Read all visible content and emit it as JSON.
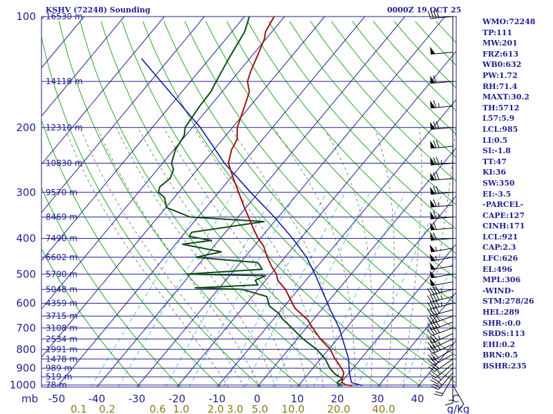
{
  "header": {
    "title": "KSHV (72248) Sounding",
    "time": "0000Z 19 OCT 25"
  },
  "indices": [
    "WMO:72248",
    "TP:111",
    "MW:201",
    "FRZ:613",
    "WB0:632",
    "PW:1.72",
    "RH:71.4",
    "MAXT:30.2",
    "TH:5712",
    "L57:5.9",
    "LCL:985",
    "LI:0.5",
    "SI:-1.8",
    "TT:47",
    "KI:36",
    "SW:350",
    "EI:-3.5",
    "-PARCEL-",
    "CAPE:127",
    "CINH:171",
    "LCL:921",
    "CAP:2.3",
    "LFC:626",
    "EL:496",
    "MPL:306",
    "-WIND-",
    "STM:278/26",
    "HEL:289",
    "SHR-:0.0",
    "SRDS:113",
    "EHI:0.2",
    "BRN:0.5",
    "BSHR:235"
  ],
  "colors": {
    "isobar": "#1f1f8f",
    "isotherm": "#1f1f8f",
    "dry_adiabat": "#22aa22",
    "moist_adiabat": "#666666",
    "mixing_ratio": "#33aaee",
    "temperature": "#a01010",
    "dewpoint": "#0e4a14",
    "parcel": "#1018a0",
    "wind": "#000000"
  },
  "chart_data": {
    "type": "skew-t",
    "pressure_unit": "mb",
    "mixing_ratio_unit": "g/kg",
    "pressure_ticks": [
      100,
      200,
      300,
      400,
      500,
      600,
      700,
      800,
      900,
      1000
    ],
    "temperature_ticks": [
      -50,
      -40,
      -30,
      -20,
      -10,
      0,
      10,
      20,
      30,
      40
    ],
    "mixing_ratio_labels": [
      "0.1",
      "0.2",
      "0.6",
      "1.0",
      "2.0",
      "3.0",
      "5.0",
      "10.0",
      "20.0",
      "40.0"
    ],
    "height_levels": [
      {
        "p": 100,
        "label": "16530 m"
      },
      {
        "p": 150,
        "label": "14118 m"
      },
      {
        "p": 200,
        "label": "12310 m"
      },
      {
        "p": 250,
        "label": "10830 m"
      },
      {
        "p": 300,
        "label": "9570 m"
      },
      {
        "p": 350,
        "label": "8469 m"
      },
      {
        "p": 400,
        "label": "7490 m"
      },
      {
        "p": 450,
        "label": "6602 m"
      },
      {
        "p": 500,
        "label": "5790 m"
      },
      {
        "p": 550,
        "label": "5048 m"
      },
      {
        "p": 600,
        "label": "4359 m"
      },
      {
        "p": 650,
        "label": "3715 m"
      },
      {
        "p": 700,
        "label": "3108 m"
      },
      {
        "p": 750,
        "label": "2534 m"
      },
      {
        "p": 800,
        "label": "1991 m"
      },
      {
        "p": 850,
        "label": "1478 m"
      },
      {
        "p": 900,
        "label": "989 m"
      },
      {
        "p": 950,
        "label": "519 m"
      },
      {
        "p": 1000,
        "label": "78 m"
      }
    ],
    "temperature_profile": [
      {
        "p": 1004,
        "t": 23.5
      },
      {
        "p": 1000,
        "t": 21.8
      },
      {
        "p": 985,
        "t": 20.2
      },
      {
        "p": 960,
        "t": 19.5
      },
      {
        "p": 925,
        "t": 18.6
      },
      {
        "p": 880,
        "t": 15.8
      },
      {
        "p": 850,
        "t": 13.6
      },
      {
        "p": 800,
        "t": 10.4
      },
      {
        "p": 750,
        "t": 5.8
      },
      {
        "p": 700,
        "t": 1.6
      },
      {
        "p": 665,
        "t": -1.4
      },
      {
        "p": 620,
        "t": -6.8
      },
      {
        "p": 600,
        "t": -8.6
      },
      {
        "p": 550,
        "t": -13.2
      },
      {
        "p": 520,
        "t": -17.0
      },
      {
        "p": 500,
        "t": -18.6
      },
      {
        "p": 475,
        "t": -21.6
      },
      {
        "p": 450,
        "t": -24.4
      },
      {
        "p": 420,
        "t": -27.6
      },
      {
        "p": 400,
        "t": -30.6
      },
      {
        "p": 375,
        "t": -34.0
      },
      {
        "p": 350,
        "t": -37.4
      },
      {
        "p": 330,
        "t": -40.4
      },
      {
        "p": 300,
        "t": -45.0
      },
      {
        "p": 275,
        "t": -49.2
      },
      {
        "p": 250,
        "t": -53.6
      },
      {
        "p": 230,
        "t": -55.6
      },
      {
        "p": 215,
        "t": -56.4
      },
      {
        "p": 200,
        "t": -58.8
      },
      {
        "p": 175,
        "t": -61.4
      },
      {
        "p": 160,
        "t": -63.2
      },
      {
        "p": 150,
        "t": -65.8
      },
      {
        "p": 140,
        "t": -67.2
      },
      {
        "p": 125,
        "t": -69.0
      },
      {
        "p": 115,
        "t": -70.4
      },
      {
        "p": 110,
        "t": -71.6
      },
      {
        "p": 100,
        "t": -72.6
      }
    ],
    "dewpoint_profile": [
      {
        "p": 1004,
        "t": 21.0
      },
      {
        "p": 990,
        "t": 19.3
      },
      {
        "p": 985,
        "t": 19.0
      },
      {
        "p": 960,
        "t": 19.5
      },
      {
        "p": 935,
        "t": 16.8
      },
      {
        "p": 900,
        "t": 14.2
      },
      {
        "p": 850,
        "t": 11.2
      },
      {
        "p": 800,
        "t": 7.0
      },
      {
        "p": 750,
        "t": 1.5
      },
      {
        "p": 700,
        "t": -3.6
      },
      {
        "p": 660,
        "t": -8.0
      },
      {
        "p": 640,
        "t": -9.8
      },
      {
        "p": 610,
        "t": -13.8
      },
      {
        "p": 575,
        "t": -16.4
      },
      {
        "p": 550,
        "t": -24.0
      },
      {
        "p": 545,
        "t": -36.0
      },
      {
        "p": 535,
        "t": -21.0
      },
      {
        "p": 520,
        "t": -22.6
      },
      {
        "p": 505,
        "t": -21.0
      },
      {
        "p": 500,
        "t": -41.0
      },
      {
        "p": 485,
        "t": -23.2
      },
      {
        "p": 470,
        "t": -25.0
      },
      {
        "p": 465,
        "t": -25.8
      },
      {
        "p": 455,
        "t": -37.0
      },
      {
        "p": 450,
        "t": -42.2
      },
      {
        "p": 435,
        "t": -37.0
      },
      {
        "p": 415,
        "t": -48.2
      },
      {
        "p": 405,
        "t": -41.8
      },
      {
        "p": 395,
        "t": -48.2
      },
      {
        "p": 385,
        "t": -48.4
      },
      {
        "p": 360,
        "t": -32.6
      },
      {
        "p": 350,
        "t": -52.0
      },
      {
        "p": 330,
        "t": -59.8
      },
      {
        "p": 310,
        "t": -62.4
      },
      {
        "p": 300,
        "t": -65.0
      },
      {
        "p": 290,
        "t": -65.8
      },
      {
        "p": 275,
        "t": -65.0
      },
      {
        "p": 260,
        "t": -66.0
      },
      {
        "p": 250,
        "t": -67.8
      },
      {
        "p": 230,
        "t": -69.6
      },
      {
        "p": 210,
        "t": -70.4
      },
      {
        "p": 200,
        "t": -71.8
      },
      {
        "p": 175,
        "t": -72.6
      },
      {
        "p": 160,
        "t": -72.8
      },
      {
        "p": 150,
        "t": -73.6
      },
      {
        "p": 130,
        "t": -75.2
      },
      {
        "p": 110,
        "t": -76.8
      },
      {
        "p": 100,
        "t": -78.8
      }
    ],
    "parcel_profile": [
      {
        "p": 1004,
        "t": 26.0
      },
      {
        "p": 985,
        "t": 22.6
      },
      {
        "p": 921,
        "t": 19.8
      },
      {
        "p": 850,
        "t": 17.0
      },
      {
        "p": 700,
        "t": 8.2
      },
      {
        "p": 626,
        "t": 2.3
      },
      {
        "p": 600,
        "t": 0.2
      },
      {
        "p": 550,
        "t": -4.2
      },
      {
        "p": 500,
        "t": -9.0
      },
      {
        "p": 450,
        "t": -14.6
      },
      {
        "p": 400,
        "t": -22.0
      },
      {
        "p": 350,
        "t": -31.0
      },
      {
        "p": 300,
        "t": -42.0
      },
      {
        "p": 250,
        "t": -54.6
      },
      {
        "p": 200,
        "t": -68.0
      },
      {
        "p": 150,
        "t": -87.4
      },
      {
        "p": 130,
        "t": -97.0
      }
    ],
    "wind_profile": [
      {
        "p": 1000,
        "dir": 150,
        "spd": 10
      },
      {
        "p": 975,
        "dir": 180,
        "spd": 15
      },
      {
        "p": 950,
        "dir": 210,
        "spd": 20
      },
      {
        "p": 925,
        "dir": 220,
        "spd": 25
      },
      {
        "p": 900,
        "dir": 225,
        "spd": 25
      },
      {
        "p": 875,
        "dir": 230,
        "spd": 25
      },
      {
        "p": 850,
        "dir": 235,
        "spd": 30
      },
      {
        "p": 825,
        "dir": 240,
        "spd": 30
      },
      {
        "p": 800,
        "dir": 240,
        "spd": 30
      },
      {
        "p": 775,
        "dir": 245,
        "spd": 35
      },
      {
        "p": 750,
        "dir": 245,
        "spd": 35
      },
      {
        "p": 725,
        "dir": 245,
        "spd": 35
      },
      {
        "p": 700,
        "dir": 250,
        "spd": 40
      },
      {
        "p": 675,
        "dir": 250,
        "spd": 40
      },
      {
        "p": 650,
        "dir": 250,
        "spd": 40
      },
      {
        "p": 625,
        "dir": 255,
        "spd": 40
      },
      {
        "p": 600,
        "dir": 255,
        "spd": 45
      },
      {
        "p": 575,
        "dir": 255,
        "spd": 45
      },
      {
        "p": 550,
        "dir": 255,
        "spd": 45
      },
      {
        "p": 525,
        "dir": 260,
        "spd": 50
      },
      {
        "p": 500,
        "dir": 260,
        "spd": 50
      },
      {
        "p": 475,
        "dir": 260,
        "spd": 50
      },
      {
        "p": 450,
        "dir": 260,
        "spd": 55
      },
      {
        "p": 425,
        "dir": 260,
        "spd": 55
      },
      {
        "p": 400,
        "dir": 265,
        "spd": 60
      },
      {
        "p": 375,
        "dir": 265,
        "spd": 60
      },
      {
        "p": 350,
        "dir": 265,
        "spd": 65
      },
      {
        "p": 325,
        "dir": 265,
        "spd": 65
      },
      {
        "p": 300,
        "dir": 265,
        "spd": 70
      },
      {
        "p": 275,
        "dir": 265,
        "spd": 70
      },
      {
        "p": 250,
        "dir": 265,
        "spd": 75
      },
      {
        "p": 225,
        "dir": 265,
        "spd": 70
      },
      {
        "p": 200,
        "dir": 265,
        "spd": 70
      },
      {
        "p": 175,
        "dir": 265,
        "spd": 65
      },
      {
        "p": 150,
        "dir": 265,
        "spd": 60
      },
      {
        "p": 125,
        "dir": 265,
        "spd": 50
      },
      {
        "p": 100,
        "dir": 265,
        "spd": 40
      }
    ]
  }
}
